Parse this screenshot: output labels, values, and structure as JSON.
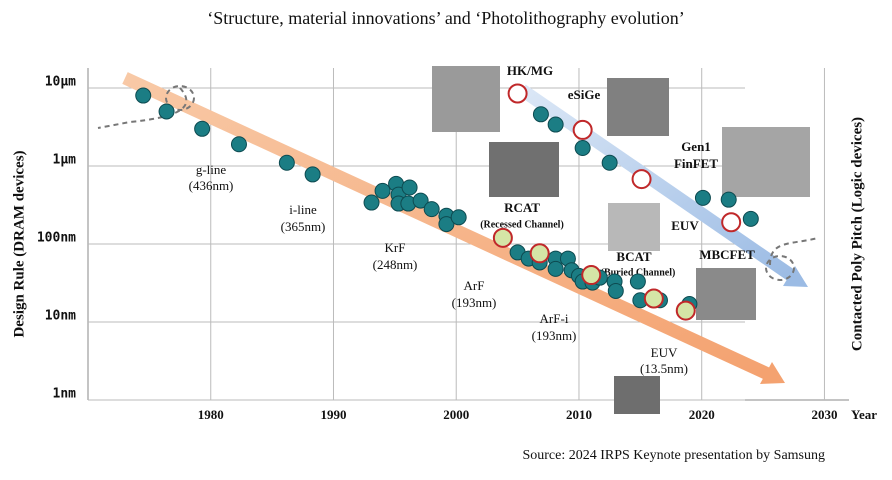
{
  "chart_data": {
    "type": "scatter",
    "title": "‘Structure, material innovations’ and ‘Photolithography evolution’",
    "y_label": "Design Rule (DRAM devices)",
    "y2_label": "Contacted Poly Pitch (Logic devices)",
    "x_label": "Year",
    "source": "Source: 2024 IRPS Keynote presentation by Samsung",
    "xlim": [
      1970,
      2032
    ],
    "xticks": [
      1980,
      1990,
      2000,
      2010,
      2020,
      2030
    ],
    "ylim": [
      1,
      10000
    ],
    "log_y": true,
    "grid": true,
    "yticks": [
      {
        "value": 10000,
        "label": "10μm"
      },
      {
        "value": 1000,
        "label": "1μm"
      },
      {
        "value": 100,
        "label": "100nm"
      },
      {
        "value": 10,
        "label": "10nm"
      },
      {
        "value": 1,
        "label": "1nm"
      }
    ],
    "series": [
      {
        "color": "#1b7d84",
        "edge": "#0d4a50",
        "x": [
          1974.5,
          1976.4,
          1979.3,
          1982.3,
          1986.2,
          1988.3,
          1993.1,
          1994.0,
          1995.1,
          1995.3,
          1995.3,
          1996.2,
          1996.1,
          1997.1,
          1998.0,
          1999.2,
          1999.2,
          2000.2,
          2005.0,
          2005.9,
          2006.8,
          2008.1,
          2008.1,
          2009.1,
          2009.4,
          2010.0,
          2010.3,
          2011.1,
          2011.7,
          2012.9,
          2013.0,
          2014.8,
          2015.0,
          2016.6,
          2019.0
        ],
        "values": [
          8000,
          5000,
          3000,
          1900,
          1100,
          780,
          340,
          480,
          590,
          430,
          330,
          530,
          330,
          360,
          280,
          230,
          180,
          220,
          78,
          65,
          58,
          65,
          48,
          65,
          46,
          39,
          33,
          32,
          37,
          33,
          25,
          33,
          19,
          19,
          17
        ]
      },
      {
        "color": "#1b7d84",
        "edge": "#0d4a50",
        "x": [
          2006.9,
          2008.1,
          2010.3,
          2012.5,
          2020.1,
          2022.2,
          2024.0
        ],
        "values": [
          4600,
          3400,
          1700,
          1100,
          390,
          370,
          210
        ]
      },
      {
        "color": "#ffffff",
        "edge": "#c0282a",
        "x": [
          2005.0,
          2010.3,
          2015.1,
          2022.4
        ],
        "values": [
          8500,
          2900,
          680,
          190
        ]
      },
      {
        "color": "#d5e5a6",
        "edge": "#c0282a",
        "x": [
          2003.8,
          2006.8,
          2011.0,
          2016.1,
          2018.7
        ],
        "values": [
          120,
          76,
          40,
          20,
          14
        ]
      }
    ],
    "annotations": [
      "g-line",
      "(436nm)",
      "i-line",
      "(365nm)",
      "KrF",
      "(248nm)",
      "ArF",
      "(193nm)",
      "ArF-i",
      "(193nm)",
      "EUV",
      "(13.5nm)",
      "HK/MG",
      "eSiGe",
      "Gen1",
      "FinFET",
      "RCAT",
      "(Recessed Channel)",
      "EUV",
      "BCAT",
      "(Buried Channel)",
      "MBCFET"
    ]
  }
}
